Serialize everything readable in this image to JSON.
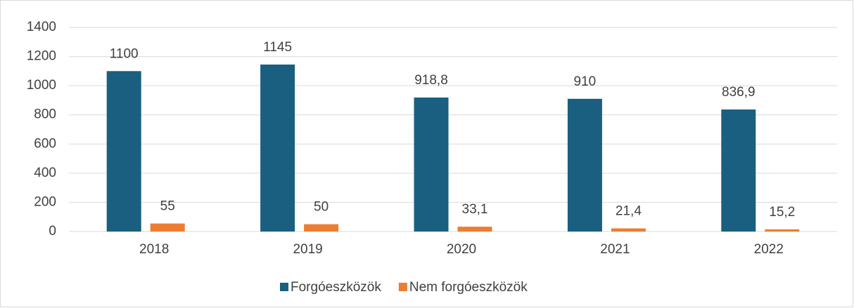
{
  "chart_data": {
    "type": "bar",
    "categories": [
      "2018",
      "2019",
      "2020",
      "2021",
      "2022"
    ],
    "series": [
      {
        "name": "Forgóeszközök",
        "color": "#1a5f80",
        "values": [
          1100,
          1145,
          918.8,
          910,
          836.9
        ],
        "value_labels": [
          "1100",
          "1145",
          "918,8",
          "910",
          "836,9"
        ]
      },
      {
        "name": "Nem forgóeszközök",
        "color": "#ed7d31",
        "values": [
          55,
          50,
          33.1,
          21.4,
          15.2
        ],
        "value_labels": [
          "55",
          "50",
          "33,1",
          "21,4",
          "15,2"
        ]
      }
    ],
    "ylim": [
      0,
      1400
    ],
    "yticks": [
      0,
      200,
      400,
      600,
      800,
      1000,
      1200,
      1400
    ],
    "grid": true,
    "legend": "bottom"
  }
}
